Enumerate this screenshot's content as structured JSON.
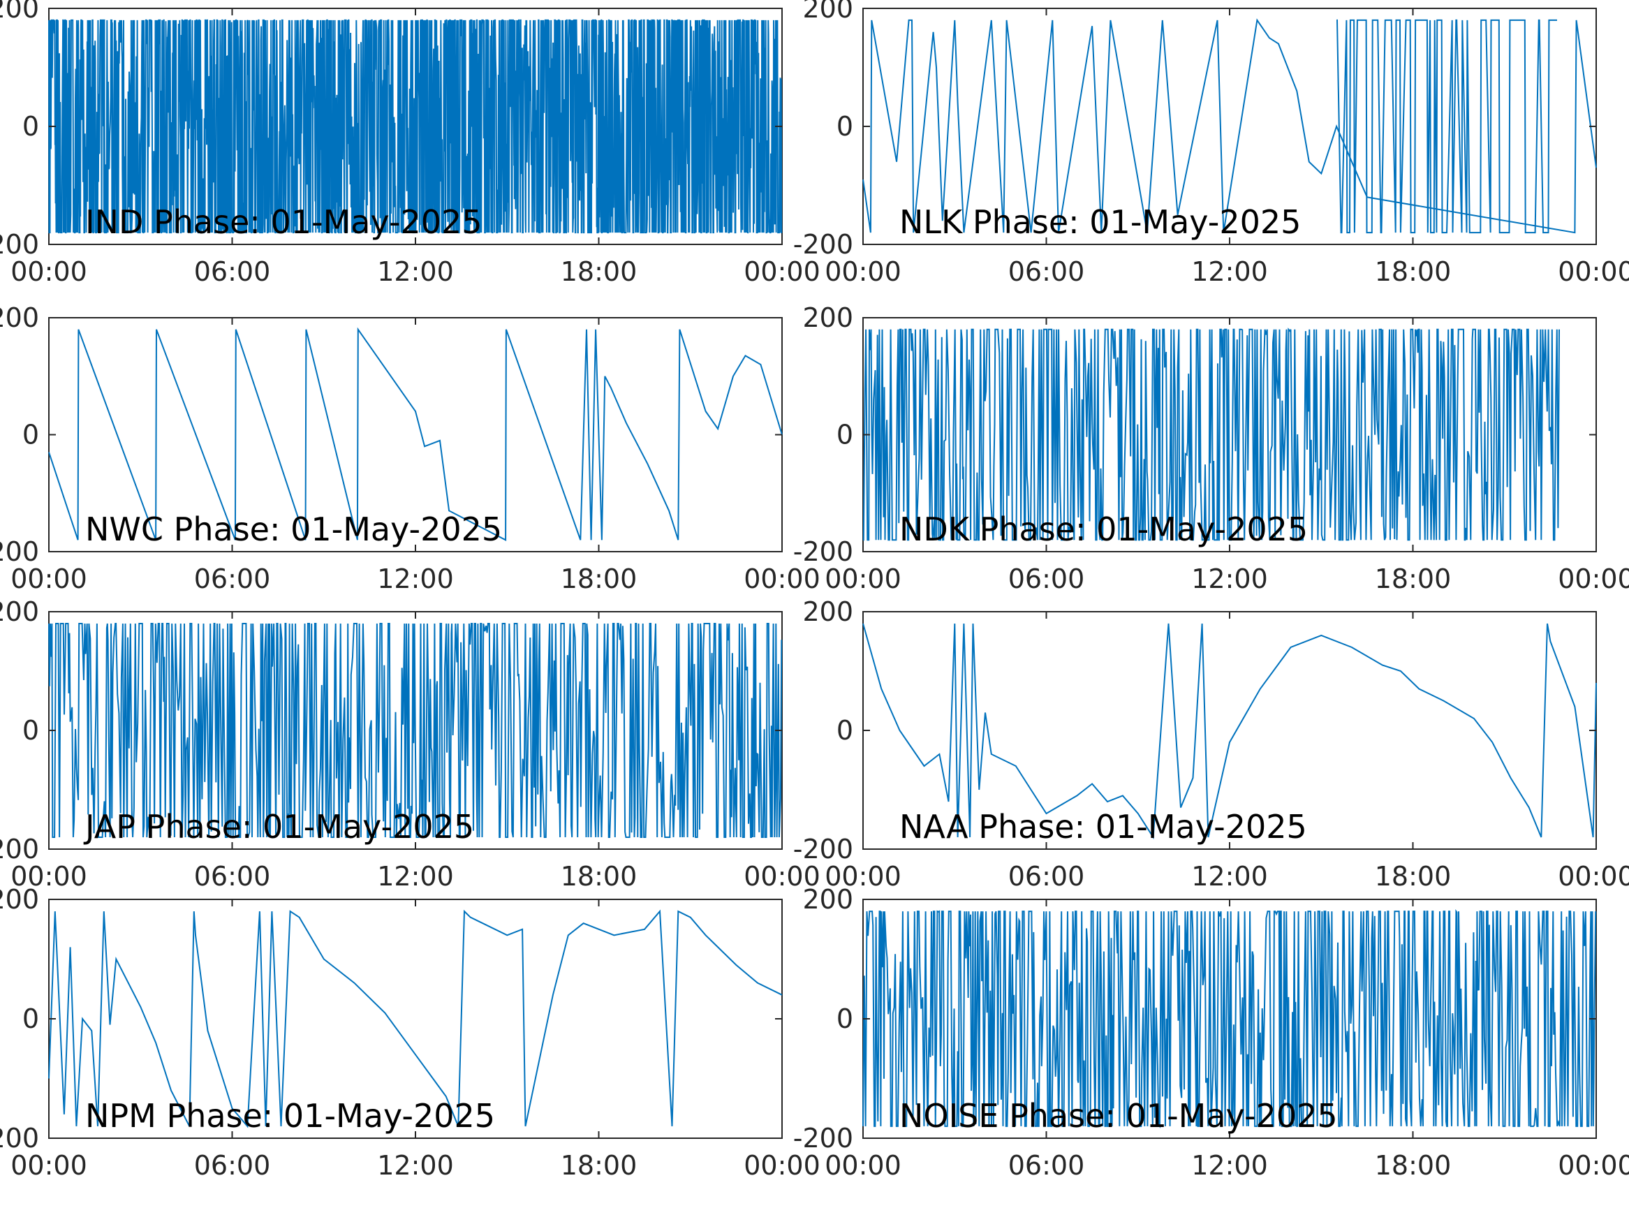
{
  "chart_data": [
    {
      "type": "line",
      "title": "IND Phase: 01-May-2025",
      "xlabel": "",
      "ylabel": "",
      "x_ticks": [
        "00:00",
        "06:00",
        "12:00",
        "18:00",
        "00:00"
      ],
      "y_ticks": [
        "-200",
        "0",
        "200"
      ],
      "xlim": [
        "00:00",
        "24:00"
      ],
      "ylim": [
        -200,
        200
      ],
      "x_hours": [
        0,
        24
      ],
      "y_bounds": [
        -180,
        180
      ],
      "style": "dense",
      "seed": 11,
      "color": "#0072BD"
    },
    {
      "type": "line",
      "title": "NLK Phase: 01-May-2025",
      "xlabel": "",
      "ylabel": "",
      "x_ticks": [
        "00:00",
        "06:00",
        "12:00",
        "18:00",
        "00:00"
      ],
      "y_ticks": [
        "-200",
        "0",
        "200"
      ],
      "xlim": [
        "00:00",
        "24:00"
      ],
      "ylim": [
        -200,
        200
      ],
      "x": [
        0,
        0.25,
        0.28,
        1.1,
        1.5,
        1.6,
        1.65,
        2.3,
        2.4,
        2.6,
        3.0,
        3.1,
        3.3,
        4.2,
        4.6,
        4.7,
        5.5,
        6.2,
        6.4,
        7.5,
        7.8,
        8.1,
        9.3,
        9.8,
        10.3,
        11.6,
        11.8,
        12.9,
        13.3,
        13.6,
        14.2,
        14.6,
        15.0,
        15.5,
        16.5,
        23.3,
        23.35,
        24.0
      ],
      "y": [
        -90,
        -180,
        180,
        -60,
        180,
        180,
        -180,
        160,
        100,
        -160,
        180,
        40,
        -180,
        180,
        -180,
        180,
        -180,
        180,
        -180,
        170,
        -180,
        180,
        -180,
        180,
        -150,
        180,
        -180,
        180,
        150,
        140,
        60,
        -60,
        -80,
        0,
        -120,
        -180,
        180,
        -70
      ],
      "noise_x_hours": [
        15.5,
        22.8
      ],
      "seed": 23,
      "color": "#0072BD"
    },
    {
      "type": "line",
      "title": "NWC Phase: 01-May-2025",
      "xlabel": "",
      "ylabel": "",
      "x_ticks": [
        "00:00",
        "06:00",
        "12:00",
        "18:00",
        "00:00"
      ],
      "y_ticks": [
        "-200",
        "0",
        "200"
      ],
      "xlim": [
        "00:00",
        "24:00"
      ],
      "ylim": [
        -200,
        200
      ],
      "x": [
        0,
        0.95,
        0.97,
        3.5,
        3.52,
        6.1,
        6.12,
        8.4,
        8.42,
        10.1,
        10.12,
        12.0,
        12.3,
        12.8,
        13.1,
        14.95,
        14.97,
        17.4,
        17.6,
        17.75,
        17.9,
        18.1,
        18.2,
        18.4,
        18.9,
        19.6,
        20.3,
        20.6,
        20.65,
        21.5,
        21.9,
        22.4,
        22.8,
        23.3,
        24.0
      ],
      "y": [
        -30,
        -180,
        180,
        -180,
        180,
        -180,
        180,
        -180,
        180,
        -180,
        180,
        40,
        -20,
        -10,
        -130,
        -180,
        180,
        -180,
        180,
        -180,
        180,
        -180,
        100,
        80,
        20,
        -50,
        -130,
        -180,
        180,
        40,
        10,
        100,
        135,
        120,
        0
      ],
      "seed": 31,
      "color": "#0072BD"
    },
    {
      "type": "line",
      "title": "NDK Phase: 01-May-2025",
      "xlabel": "",
      "ylabel": "",
      "x_ticks": [
        "00:00",
        "06:00",
        "12:00",
        "18:00",
        "00:00"
      ],
      "y_ticks": [
        "-200",
        "0",
        "200"
      ],
      "xlim": [
        "00:00",
        "24:00"
      ],
      "ylim": [
        -200,
        200
      ],
      "x_hours": [
        0,
        22.8
      ],
      "y_bounds": [
        -180,
        180
      ],
      "style": "medium",
      "seed": 47,
      "color": "#0072BD"
    },
    {
      "type": "line",
      "title": "JAP Phase: 01-May-2025",
      "xlabel": "",
      "ylabel": "",
      "x_ticks": [
        "00:00",
        "06:00",
        "12:00",
        "18:00",
        "00:00"
      ],
      "y_ticks": [
        "-200",
        "0",
        "200"
      ],
      "xlim": [
        "00:00",
        "24:00"
      ],
      "ylim": [
        -200,
        200
      ],
      "x_hours": [
        0,
        24
      ],
      "y_bounds": [
        -180,
        180
      ],
      "style": "medium",
      "seed": 53,
      "color": "#0072BD"
    },
    {
      "type": "line",
      "title": "NAA Phase: 01-May-2025",
      "xlabel": "",
      "ylabel": "",
      "x_ticks": [
        "00:00",
        "06:00",
        "12:00",
        "18:00",
        "00:00"
      ],
      "y_ticks": [
        "-200",
        "0",
        "200"
      ],
      "xlim": [
        "00:00",
        "24:00"
      ],
      "ylim": [
        -200,
        200
      ],
      "x": [
        0,
        0.6,
        1.2,
        2.0,
        2.5,
        2.8,
        3.0,
        3.1,
        3.3,
        3.5,
        3.6,
        3.8,
        4.0,
        4.2,
        5.0,
        5.5,
        6.0,
        7.0,
        7.5,
        8.0,
        8.5,
        9.0,
        9.5,
        10.0,
        10.4,
        10.8,
        11.1,
        11.3,
        12.0,
        13.0,
        14.0,
        15.0,
        16.0,
        17.0,
        17.6,
        18.2,
        19.0,
        20.0,
        20.6,
        21.2,
        21.8,
        22.2,
        22.4,
        22.5,
        23.3,
        23.9,
        24.0
      ],
      "y": [
        180,
        70,
        0,
        -60,
        -40,
        -120,
        180,
        -180,
        180,
        -180,
        180,
        -100,
        30,
        -40,
        -60,
        -100,
        -140,
        -110,
        -90,
        -120,
        -110,
        -140,
        -180,
        180,
        -130,
        -80,
        180,
        -180,
        -20,
        70,
        140,
        160,
        140,
        110,
        100,
        70,
        50,
        20,
        -20,
        -80,
        -130,
        -180,
        180,
        150,
        40,
        -180,
        80
      ],
      "seed": 61,
      "color": "#0072BD"
    },
    {
      "type": "line",
      "title": "NPM Phase: 01-May-2025",
      "xlabel": "",
      "ylabel": "",
      "x_ticks": [
        "00:00",
        "06:00",
        "12:00",
        "18:00",
        "00:00"
      ],
      "y_ticks": [
        "-200",
        "0",
        "200"
      ],
      "xlim": [
        "00:00",
        "24:00"
      ],
      "ylim": [
        -200,
        200
      ],
      "x": [
        0,
        0.2,
        0.5,
        0.7,
        0.9,
        1.1,
        1.4,
        1.6,
        1.8,
        2.0,
        2.2,
        2.6,
        3.0,
        3.5,
        4.0,
        4.6,
        4.75,
        4.8,
        5.2,
        6.0,
        6.5,
        6.9,
        7.1,
        7.3,
        7.6,
        7.9,
        8.2,
        9.0,
        10.0,
        11.0,
        12.0,
        13.0,
        13.4,
        13.6,
        13.8,
        14.2,
        15.0,
        15.5,
        15.6,
        16.5,
        17.0,
        17.5,
        18.5,
        19.5,
        20.0,
        20.4,
        20.6,
        21.0,
        21.5,
        22.5,
        23.2,
        24.0
      ],
      "y": [
        -100,
        180,
        -160,
        120,
        -180,
        0,
        -20,
        -180,
        180,
        -10,
        100,
        60,
        20,
        -40,
        -120,
        -180,
        180,
        140,
        -20,
        -150,
        -180,
        180,
        -180,
        180,
        -180,
        180,
        170,
        100,
        60,
        10,
        -60,
        -130,
        -180,
        180,
        170,
        160,
        140,
        150,
        -180,
        40,
        140,
        160,
        140,
        150,
        180,
        -180,
        180,
        170,
        140,
        90,
        60,
        40
      ],
      "seed": 71,
      "color": "#0072BD"
    },
    {
      "type": "line",
      "title": "NOISE Phase: 01-May-2025",
      "xlabel": "",
      "ylabel": "",
      "x_ticks": [
        "00:00",
        "06:00",
        "12:00",
        "18:00",
        "00:00"
      ],
      "y_ticks": [
        "-200",
        "0",
        "200"
      ],
      "xlim": [
        "00:00",
        "24:00"
      ],
      "ylim": [
        -200,
        200
      ],
      "x_hours": [
        0,
        24
      ],
      "y_bounds": [
        -180,
        180
      ],
      "style": "medium",
      "seed": 83,
      "color": "#0072BD"
    }
  ]
}
